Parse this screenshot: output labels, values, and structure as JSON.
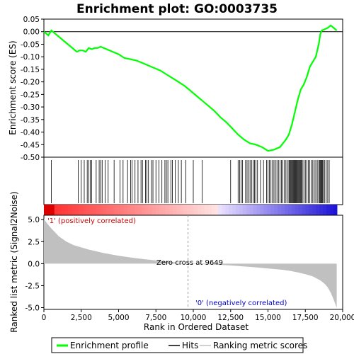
{
  "chart_data": {
    "type": "line",
    "title": "Enrichment plot: GO:0003735",
    "top_panel": {
      "ylabel": "Enrichment score (ES)",
      "ylim": [
        -0.5,
        0.05
      ],
      "yticks": [
        "0.05",
        "0.00",
        "-0.05",
        "-0.10",
        "-0.15",
        "-0.20",
        "-0.25",
        "-0.30",
        "-0.35",
        "-0.40",
        "-0.45",
        "-0.50"
      ],
      "ytick_values": [
        0.05,
        0.0,
        -0.05,
        -0.1,
        -0.15,
        -0.2,
        -0.25,
        -0.3,
        -0.35,
        -0.4,
        -0.45,
        -0.5
      ],
      "series": [
        {
          "name": "Enrichment profile",
          "color": "#00ff00",
          "x": [
            0,
            300,
            500,
            800,
            1200,
            1600,
            2000,
            2200,
            2400,
            2600,
            2800,
            3000,
            3200,
            3400,
            3600,
            3800,
            4000,
            4200,
            4600,
            5000,
            5400,
            5800,
            6200,
            6600,
            7000,
            7400,
            7800,
            8200,
            8600,
            9000,
            9400,
            9800,
            10200,
            10600,
            11000,
            11400,
            11800,
            12200,
            12600,
            13000,
            13400,
            13800,
            14200,
            14600,
            15000,
            15400,
            15800,
            16000,
            16200,
            16400,
            16600,
            16800,
            17000,
            17200,
            17400,
            17600,
            17800,
            18000,
            18200,
            18400,
            18500,
            18600,
            18800,
            19000,
            19200,
            19400,
            19600
          ],
          "y": [
            0.0,
            -0.015,
            0.005,
            -0.01,
            -0.03,
            -0.05,
            -0.07,
            -0.08,
            -0.075,
            -0.075,
            -0.08,
            -0.065,
            -0.07,
            -0.065,
            -0.065,
            -0.06,
            -0.065,
            -0.07,
            -0.08,
            -0.09,
            -0.105,
            -0.11,
            -0.115,
            -0.125,
            -0.135,
            -0.145,
            -0.155,
            -0.17,
            -0.185,
            -0.2,
            -0.215,
            -0.235,
            -0.255,
            -0.275,
            -0.295,
            -0.315,
            -0.34,
            -0.36,
            -0.385,
            -0.41,
            -0.43,
            -0.445,
            -0.45,
            -0.46,
            -0.475,
            -0.47,
            -0.46,
            -0.445,
            -0.43,
            -0.41,
            -0.37,
            -0.32,
            -0.27,
            -0.23,
            -0.21,
            -0.18,
            -0.14,
            -0.12,
            -0.1,
            -0.05,
            -0.01,
            0.005,
            0.01,
            0.015,
            0.025,
            0.015,
            0.005
          ]
        }
      ]
    },
    "hits": {
      "name": "Hits",
      "positions": [
        500,
        2300,
        2500,
        2700,
        2900,
        3000,
        3100,
        3200,
        3500,
        3700,
        3800,
        3900,
        4100,
        4300,
        4700,
        5100,
        5300,
        5600,
        5800,
        5900,
        6100,
        6300,
        6500,
        6600,
        6800,
        6900,
        7000,
        7200,
        7300,
        7500,
        7700,
        7900,
        8100,
        8200,
        8300,
        8500,
        8600,
        8800,
        9000,
        9200,
        9500,
        10000,
        10600,
        12500,
        13000,
        13100,
        13200,
        13300,
        13500,
        13600,
        13700,
        13800,
        13900,
        14000,
        14100,
        14200,
        14300,
        14500,
        14700,
        14900,
        15000,
        15100,
        15200,
        15300,
        15400,
        15500,
        15600,
        15700,
        15800,
        15900,
        16000,
        16100,
        16200,
        16300,
        16400,
        16450,
        16500,
        16550,
        16600,
        16650,
        16700,
        16750,
        16800,
        16850,
        16900,
        16950,
        17000,
        17050,
        17100,
        17150,
        17200,
        17250,
        17300,
        17400,
        17500,
        17600,
        17700,
        17800,
        17900,
        18000,
        18100,
        18200,
        18300,
        18400,
        18450,
        18500,
        18550,
        18600,
        18650,
        18700,
        18800,
        18900,
        19000,
        19100
      ]
    },
    "ranked_list": {
      "name": "Ranking metric scores",
      "ylabel": "Ranked list metric (Signal2Noise)",
      "ylim": [
        -5.2,
        5.5
      ],
      "yticks": [
        "5.0",
        "2.5",
        "0.0",
        "-2.5",
        "-5.0"
      ],
      "ytick_values": [
        5.0,
        2.5,
        0.0,
        -2.5,
        -5.0
      ],
      "x": [
        0,
        200,
        500,
        1000,
        1500,
        2000,
        3000,
        4000,
        5000,
        6000,
        7000,
        8000,
        9000,
        9649,
        10500,
        12000,
        13000,
        14000,
        15000,
        16000,
        16500,
        17000,
        17500,
        18000,
        18500,
        18800,
        19000,
        19200,
        19400,
        19600
      ],
      "values": [
        5.1,
        4.6,
        4.0,
        3.1,
        2.5,
        2.1,
        1.6,
        1.2,
        0.9,
        0.65,
        0.45,
        0.28,
        0.12,
        0.0,
        -0.05,
        -0.15,
        -0.28,
        -0.4,
        -0.55,
        -0.7,
        -0.82,
        -1.0,
        -1.2,
        -1.45,
        -1.9,
        -2.3,
        -2.7,
        -3.3,
        -4.1,
        -5.0
      ],
      "annotations": {
        "positive": "'1' (positively correlated)",
        "zero_cross": "Zero cross at 9649",
        "negative": "'0' (negatively correlated)"
      },
      "zero_cross": 9649
    },
    "xlabel": "Rank in Ordered Dataset",
    "xlim": [
      0,
      20000
    ],
    "xticks": [
      "0",
      "2,500",
      "5,000",
      "7,500",
      "10,000",
      "12,500",
      "15,000",
      "17,500",
      "20,000"
    ],
    "xtick_values": [
      0,
      2500,
      5000,
      7500,
      10000,
      12500,
      15000,
      17500,
      20000
    ],
    "legend": {
      "placement": "bottom",
      "items": [
        "Enrichment profile",
        "Hits",
        "Ranking metric scores"
      ]
    },
    "colors": {
      "profile": "#00ff00",
      "positive_label": "#cc0000",
      "negative_label": "#0000cc",
      "metric_fill": "#c0c0c0"
    }
  }
}
